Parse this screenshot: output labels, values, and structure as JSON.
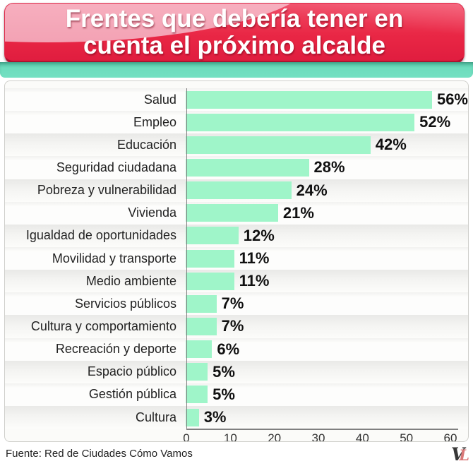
{
  "title": {
    "line1": "Frentes que debería tener en",
    "line2": "cuenta el próximo alcalde"
  },
  "chart_data": {
    "type": "bar",
    "orientation": "horizontal",
    "categories": [
      "Salud",
      "Empleo",
      "Educación",
      "Seguridad ciudadana",
      "Pobreza y vulnerabilidad",
      "Vivienda",
      "Igualdad de oportunidades",
      "Movilidad y transporte",
      "Medio ambiente",
      "Servicios públicos",
      "Cultura y comportamiento",
      "Recreación y deporte",
      "Espacio público",
      "Gestión pública",
      "Cultura"
    ],
    "values": [
      56,
      52,
      42,
      28,
      24,
      21,
      12,
      11,
      11,
      7,
      7,
      6,
      5,
      5,
      3
    ],
    "value_suffix": "%",
    "xticks": [
      0,
      10,
      20,
      30,
      40,
      50,
      60
    ],
    "xlim": [
      0,
      60
    ],
    "bar_color": "#9ff5c9",
    "title": "Frentes que debería tener en cuenta el próximo alcalde"
  },
  "footer": {
    "source": "Fuente: Red de Ciudades Cómo Vamos",
    "logo_v": "V",
    "logo_l": "L"
  },
  "colors": {
    "banner_red": "#e92745",
    "banner_gloss": "#f8b6c2",
    "teal_stripe": "#6ddcbd",
    "bar": "#9ff5c9"
  }
}
